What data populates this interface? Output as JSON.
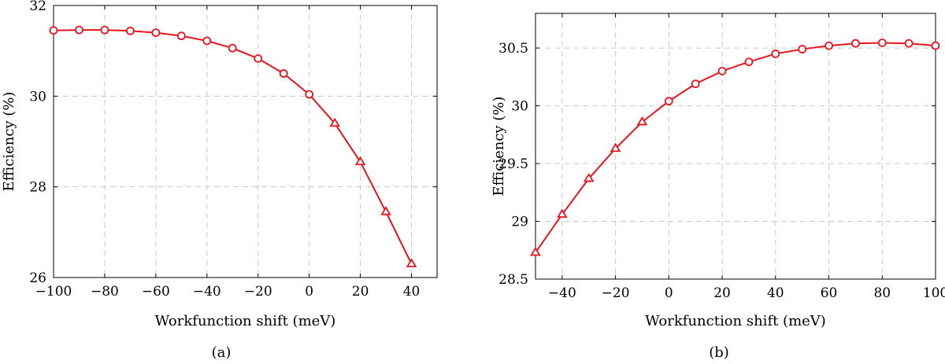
{
  "chart_data": [
    {
      "type": "line",
      "caption": "(a)",
      "xlabel": "Workfunction shift (meV)",
      "ylabel": "Efficiency (%)",
      "xlim": [
        -100,
        50
      ],
      "ylim": [
        26,
        32
      ],
      "xticks": [
        -100,
        -80,
        -60,
        -40,
        -20,
        0,
        20,
        40
      ],
      "yticks": [
        26,
        28,
        30,
        32
      ],
      "grid": true,
      "color": "#e8141c",
      "series": [
        {
          "marker": "circle",
          "x": [
            -100,
            -90,
            -80,
            -70,
            -60,
            -50,
            -40,
            -30,
            -20,
            -10,
            0
          ],
          "y": [
            31.45,
            31.46,
            31.46,
            31.44,
            31.4,
            31.33,
            31.22,
            31.06,
            30.83,
            30.5,
            30.04
          ]
        },
        {
          "marker": "triangle",
          "x": [
            10,
            20,
            30,
            40
          ],
          "y": [
            29.4,
            28.55,
            27.45,
            26.3
          ]
        }
      ]
    },
    {
      "type": "line",
      "caption": "(b)",
      "xlabel": "Workfunction shift (meV)",
      "ylabel": "Efficiency (%)",
      "xlim": [
        -50,
        100
      ],
      "ylim": [
        28.5,
        30.8
      ],
      "xticks": [
        -40,
        -20,
        0,
        20,
        40,
        60,
        80,
        100
      ],
      "yticks": [
        28.5,
        29,
        29.5,
        30,
        30.5
      ],
      "grid": true,
      "color": "#e8141c",
      "series": [
        {
          "marker": "triangle",
          "x": [
            -50,
            -40,
            -30,
            -20,
            -10
          ],
          "y": [
            28.73,
            29.06,
            29.37,
            29.63,
            29.86
          ]
        },
        {
          "marker": "circle",
          "x": [
            0,
            10,
            20,
            30,
            40,
            50,
            60,
            70,
            80,
            90,
            100
          ],
          "y": [
            30.04,
            30.19,
            30.3,
            30.38,
            30.45,
            30.49,
            30.52,
            30.54,
            30.545,
            30.54,
            30.52
          ]
        }
      ]
    }
  ]
}
